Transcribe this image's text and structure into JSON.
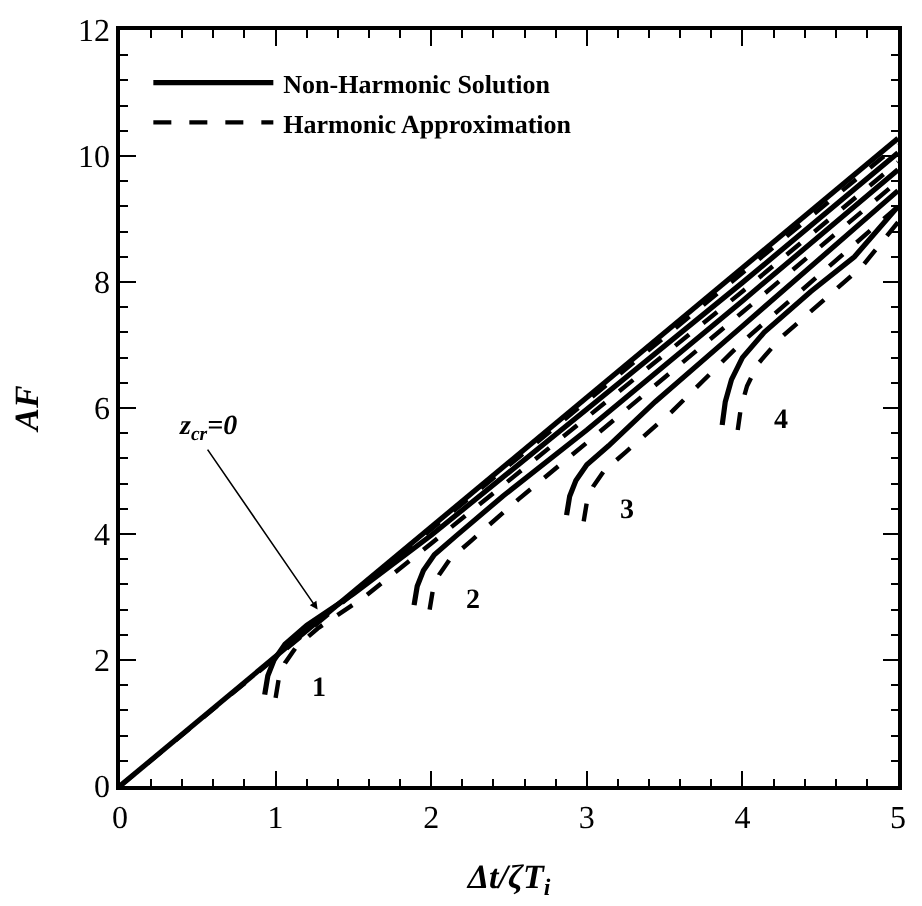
{
  "chart_data": {
    "type": "line",
    "xlabel": "Δt/ζT$_{i}$",
    "ylabel": "AF",
    "xlim": [
      0,
      5
    ],
    "ylim": [
      0,
      12
    ],
    "xticks": [
      0,
      1,
      2,
      3,
      4,
      5
    ],
    "yticks": [
      0,
      2,
      4,
      6,
      8,
      10,
      12
    ],
    "legend": "top left",
    "marker": "none",
    "series": [
      {
        "name": "Non-Harmonic Solution",
        "color": "#000000",
        "line_style": "solid",
        "x": [
          0,
          5
        ],
        "values": [
          0,
          10.28
        ]
      },
      {
        "name": "Harmonic Approximation",
        "color": "#000000",
        "line_style": "dashed",
        "x": [
          0,
          5
        ],
        "values": [
          0,
          10.18
        ]
      },
      {
        "color": "#000000",
        "line_style": "solid",
        "x": [
          0.93,
          0.95,
          0.99,
          1.06,
          1.2,
          1.5,
          2,
          3,
          4,
          5
        ],
        "values": [
          1.45,
          1.75,
          2.0,
          2.25,
          2.55,
          3.05,
          3.98,
          5.98,
          7.99,
          10.05
        ]
      },
      {
        "color": "#000000",
        "line_style": "dashed",
        "x": [
          1.0,
          1.02,
          1.06,
          1.13,
          1.27,
          1.57,
          2,
          3,
          4,
          5
        ],
        "values": [
          1.4,
          1.7,
          1.95,
          2.2,
          2.5,
          3.0,
          3.85,
          5.85,
          7.85,
          9.9
        ]
      },
      {
        "color": "#000000",
        "line_style": "solid",
        "x": [
          1.89,
          1.91,
          1.95,
          2.02,
          2.16,
          2.46,
          3,
          4,
          5
        ],
        "values": [
          2.87,
          3.17,
          3.42,
          3.67,
          3.97,
          4.6,
          5.65,
          7.7,
          9.78
        ]
      },
      {
        "color": "#000000",
        "line_style": "dashed",
        "x": [
          1.99,
          2.01,
          2.05,
          2.12,
          2.26,
          2.56,
          3,
          4,
          5
        ],
        "values": [
          2.8,
          3.1,
          3.35,
          3.6,
          3.9,
          4.55,
          5.45,
          7.52,
          9.6
        ]
      },
      {
        "color": "#000000",
        "line_style": "solid",
        "x": [
          2.87,
          2.89,
          2.93,
          3.0,
          3.14,
          3.44,
          4,
          5
        ],
        "values": [
          4.3,
          4.6,
          4.85,
          5.1,
          5.4,
          6.1,
          7.3,
          9.45
        ]
      },
      {
        "color": "#000000",
        "line_style": "dashed",
        "x": [
          2.98,
          3.0,
          3.04,
          3.11,
          3.25,
          3.55,
          4,
          5
        ],
        "values": [
          4.2,
          4.5,
          4.75,
          5.0,
          5.3,
          5.95,
          7.05,
          9.2
        ]
      },
      {
        "color": "#000000",
        "line_style": "solid",
        "x": [
          3.87,
          3.89,
          3.93,
          4.0,
          4.14,
          4.44,
          4.72,
          5
        ],
        "values": [
          5.73,
          6.1,
          6.45,
          6.8,
          7.2,
          7.85,
          8.4,
          9.2
        ]
      },
      {
        "color": "#000000",
        "line_style": "dashed",
        "x": [
          3.97,
          3.99,
          4.03,
          4.1,
          4.24,
          4.54,
          4.77,
          5
        ],
        "values": [
          5.65,
          6.0,
          6.35,
          6.7,
          7.1,
          7.75,
          8.25,
          8.95
        ]
      }
    ],
    "annotations": [
      {
        "text": "z$_{cr}$=0",
        "x": 1.27,
        "y": 2.8
      },
      "1",
      "2",
      "3",
      "4"
    ]
  }
}
